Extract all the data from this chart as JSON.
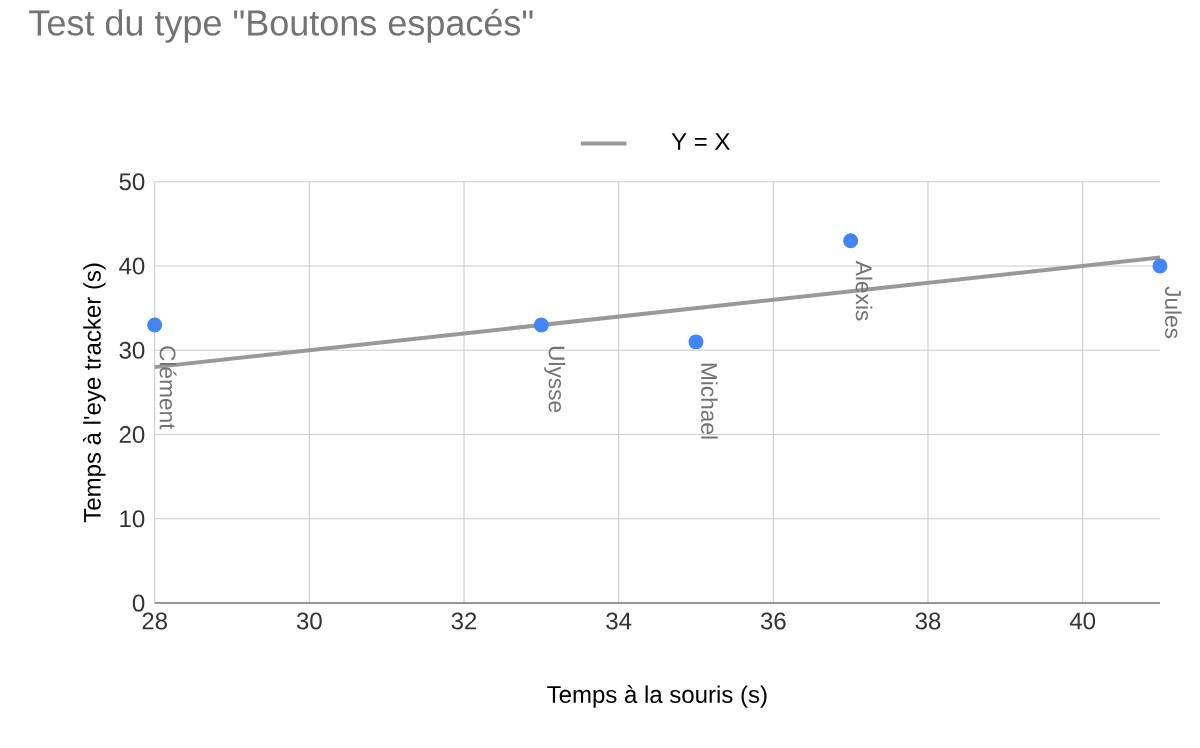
{
  "chart_data": {
    "type": "scatter",
    "title": "Test du type \"Boutons espacés\"",
    "xlabel": "Temps à la souris (s)",
    "ylabel": "Temps à l'eye tracker (s)",
    "series": [
      {
        "color": "#4285f4",
        "marker": "circle",
        "x": [
          28,
          33,
          35,
          37,
          41
        ],
        "values": [
          33,
          33,
          31,
          43,
          40
        ]
      },
      {
        "type": "line",
        "name": "Y = X",
        "color": "#999999",
        "marker": "none",
        "x": [
          28,
          41
        ],
        "values": [
          28,
          41
        ]
      }
    ],
    "annotations": [
      {
        "text": "Clément",
        "x": 28,
        "y": 33
      },
      {
        "text": "Ulysse",
        "x": 33,
        "y": 33
      },
      {
        "text": "Michael",
        "x": 35,
        "y": 31
      },
      {
        "text": "Alexis",
        "x": 37,
        "y": 43
      },
      {
        "text": "Jules",
        "x": 41,
        "y": 40
      }
    ],
    "xlim": [
      28,
      41
    ],
    "xticks": [
      28,
      30,
      32,
      34,
      36,
      38,
      40
    ],
    "ylim": [
      0,
      50
    ],
    "yticks": [
      0,
      10,
      20,
      30,
      40,
      50
    ],
    "grid": true,
    "legend": "top"
  }
}
